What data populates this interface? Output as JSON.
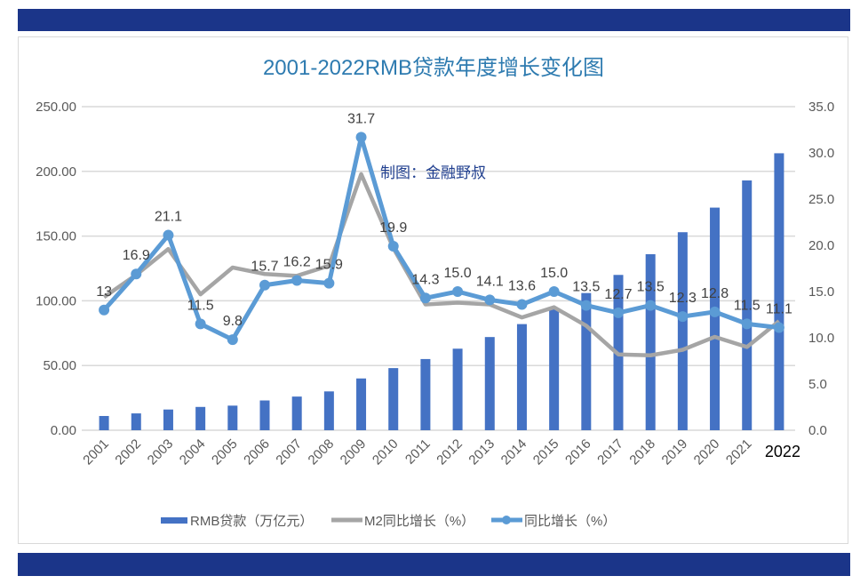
{
  "chart_data": {
    "type": "bar+line",
    "title": "2001-2022RMB贷款年度增长变化图",
    "watermark": "制图：金融野叔",
    "categories": [
      "2001",
      "2002",
      "2003",
      "2004",
      "2005",
      "2006",
      "2007",
      "2008",
      "2009",
      "2010",
      "2011",
      "2012",
      "2013",
      "2014",
      "2015",
      "2016",
      "2017",
      "2018",
      "2019",
      "2020",
      "2021",
      "2022"
    ],
    "left_axis": {
      "range": [
        0,
        250
      ],
      "ticks": [
        "0.00",
        "50.00",
        "100.00",
        "150.00",
        "200.00",
        "250.00"
      ]
    },
    "right_axis": {
      "range": [
        0,
        35
      ],
      "ticks": [
        "0.0",
        "5.0",
        "10.0",
        "15.0",
        "20.0",
        "25.0",
        "30.0",
        "35.0"
      ]
    },
    "grid": true,
    "legend_position": "bottom",
    "series": [
      {
        "name": "RMB贷款（万亿元）",
        "type": "bar",
        "axis": "left",
        "color": "#4472c4",
        "values": [
          11,
          13,
          16,
          18,
          19,
          23,
          26,
          30,
          40,
          48,
          55,
          63,
          72,
          82,
          94,
          106,
          120,
          136,
          153,
          172,
          193,
          214
        ]
      },
      {
        "name": "M2同比增长（%）",
        "type": "line",
        "axis": "right",
        "color": "#a5a5a5",
        "values": [
          14.4,
          16.8,
          19.6,
          14.7,
          17.6,
          16.9,
          16.7,
          17.8,
          27.7,
          19.7,
          13.6,
          13.8,
          13.6,
          12.2,
          13.3,
          11.3,
          8.2,
          8.1,
          8.7,
          10.1,
          9.0,
          11.8
        ]
      },
      {
        "name": "同比增长（%）",
        "type": "line",
        "axis": "right",
        "color": "#5b9bd5",
        "markers": true,
        "values": [
          13,
          16.9,
          21.1,
          11.5,
          9.8,
          15.7,
          16.2,
          15.9,
          31.7,
          19.9,
          14.3,
          15.0,
          14.1,
          13.6,
          15.0,
          13.5,
          12.7,
          13.5,
          12.3,
          12.8,
          11.5,
          11.1
        ],
        "labels": [
          "13",
          "16.9",
          "21.1",
          "11.5",
          "9.8",
          "15.7",
          "16.2",
          "15.9",
          "31.7",
          "19.9",
          "14.3",
          "15.0",
          "14.1",
          "13.6",
          "15.0",
          "13.5",
          "12.7",
          "13.5",
          "12.3",
          "12.8",
          "11.5",
          "11.1"
        ]
      }
    ]
  },
  "colors": {
    "band": "#1b3589",
    "title": "#2e7bb0"
  }
}
